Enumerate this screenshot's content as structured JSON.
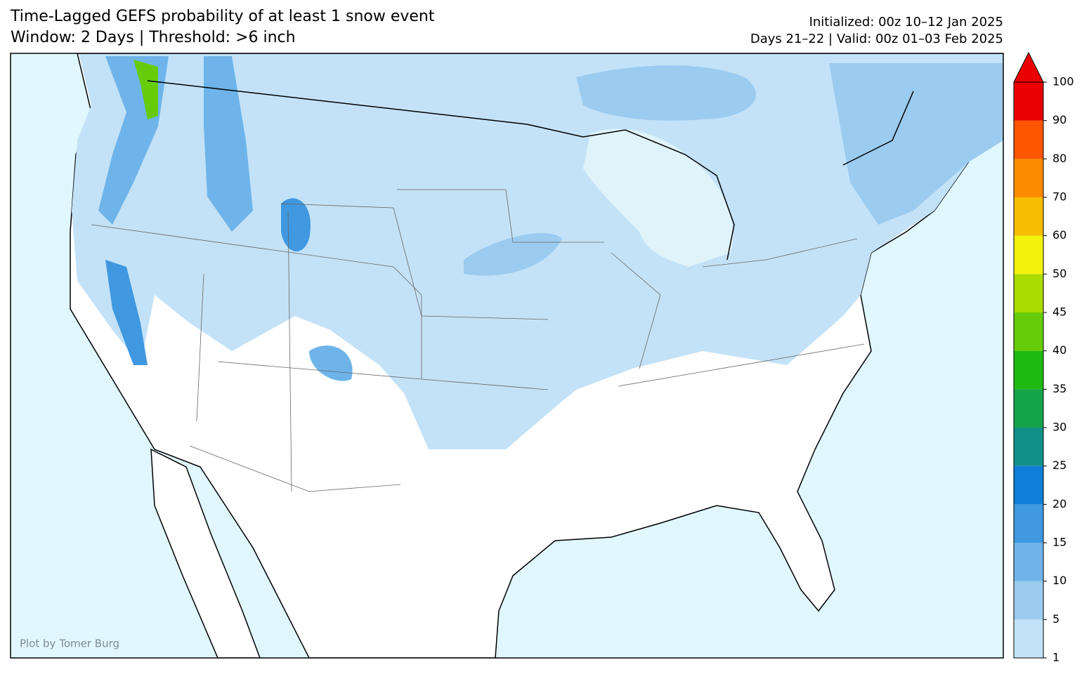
{
  "header": {
    "title": [
      "Time-Lagged GEFS probability of at least 1 snow event",
      "Window: 2 Days | Threshold: >6 inch"
    ],
    "info": [
      "Initialized: 00z 10–12 Jan 2025",
      "Days 21–22 | Valid: 00z 01–03 Feb 2025"
    ]
  },
  "credit": "Plot by Tomer Burg",
  "colorbar": {
    "ticks": [
      1,
      5,
      10,
      15,
      20,
      25,
      30,
      35,
      40,
      45,
      50,
      60,
      70,
      80,
      90,
      100
    ],
    "colors": [
      "#c3e2f7",
      "#9ccbf0",
      "#6eb4ea",
      "#3f98e0",
      "#0f7ed8",
      "#11908a",
      "#15a34a",
      "#1fba11",
      "#66cc0a",
      "#aadc00",
      "#f3f20a",
      "#f7bd00",
      "#fb8c00",
      "#fe5500",
      "#ea0000"
    ]
  }
}
